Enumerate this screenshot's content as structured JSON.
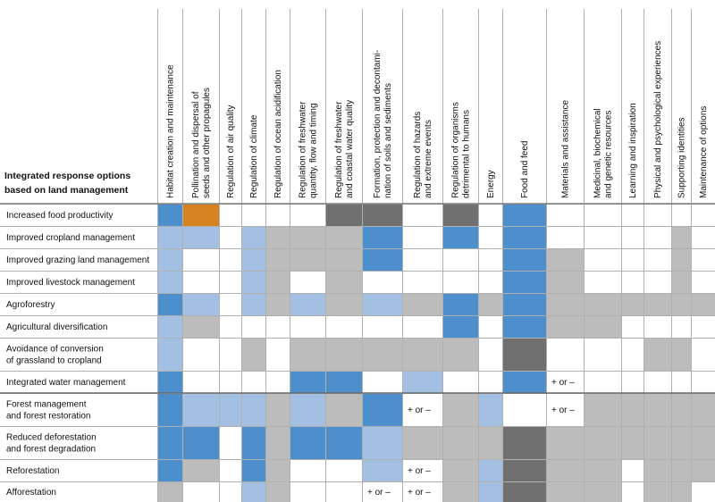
{
  "chart_data": {
    "type": "table",
    "title": "",
    "row_header": [
      "Integrated response options",
      "based on land management"
    ],
    "columns": [
      [
        "Habitat creation and maintenance"
      ],
      [
        "Pollination and dispersal of",
        "seeds and other propagules"
      ],
      [
        "Regulation of air quality"
      ],
      [
        "Regulation of climate"
      ],
      [
        "Regulation of ocean acidification"
      ],
      [
        "Regulation of freshwater",
        "quantity, flow and timing"
      ],
      [
        "Regulation of freshwater",
        "and coastal water quality"
      ],
      [
        "Formation, protection and decontami-",
        "nation of soils and sediments"
      ],
      [
        "Regulation of hazards",
        "and extreme events"
      ],
      [
        "Regulation of organisms",
        "detrimental to humans"
      ],
      [
        "Energy"
      ],
      [
        "Food and feed"
      ],
      [
        "Materials and assistance"
      ],
      [
        "Medicinal, biochemical",
        "and genetic resources"
      ],
      [
        "Learning and inspiration"
      ],
      [
        "Physical and psychological experiences"
      ],
      [
        "Supporting identities"
      ],
      [
        "Maintenance of options"
      ]
    ],
    "rows": [
      [
        "Increased food productivity"
      ],
      [
        "Improved cropland management"
      ],
      [
        "Improved grazing land management"
      ],
      [
        "Improved livestock management"
      ],
      [
        "Agroforestry"
      ],
      [
        "Agricultural diversification"
      ],
      [
        "Avoidance of conversion",
        "of grassland to cropland"
      ],
      [
        "Integrated water management"
      ],
      [
        "Forest management",
        "and forest restoration"
      ],
      [
        "Reduced deforestation",
        "and forest degradation"
      ],
      [
        "Reforestation"
      ],
      [
        "Afforestation"
      ]
    ],
    "legend_codes": {
      "B": "#4d8fcd",
      "L": "#a3c0e2",
      "G": "#bcbcbc",
      "D": "#707070",
      "O": "#d8821f",
      "W": "#ffffff"
    },
    "cells": [
      [
        "B",
        "O",
        "W",
        "W",
        "W",
        "W",
        "D",
        "D",
        "W",
        "D",
        "W",
        "B",
        "W",
        "W",
        "W",
        "W",
        "W",
        "W"
      ],
      [
        "L",
        "L",
        "W",
        "L",
        "G",
        "G",
        "G",
        "B",
        "W",
        "B",
        "W",
        "B",
        "W",
        "W",
        "W",
        "W",
        "G",
        "W"
      ],
      [
        "L",
        "W",
        "W",
        "L",
        "G",
        "G",
        "G",
        "B",
        "W",
        "W",
        "W",
        "B",
        "G",
        "W",
        "W",
        "W",
        "G",
        "W"
      ],
      [
        "L",
        "W",
        "W",
        "L",
        "G",
        "W",
        "G",
        "W",
        "W",
        "W",
        "W",
        "B",
        "G",
        "W",
        "W",
        "W",
        "G",
        "W"
      ],
      [
        "B",
        "L",
        "W",
        "L",
        "G",
        "L",
        "G",
        "L",
        "G",
        "B",
        "G",
        "B",
        "G",
        "G",
        "G",
        "G",
        "G",
        "G"
      ],
      [
        "L",
        "G",
        "W",
        "W",
        "W",
        "W",
        "W",
        "W",
        "W",
        "B",
        "W",
        "B",
        "G",
        "G",
        "W",
        "W",
        "W",
        "W"
      ],
      [
        "L",
        "W",
        "W",
        "G",
        "W",
        "G",
        "G",
        "G",
        "G",
        "G",
        "W",
        "D",
        "W",
        "W",
        "W",
        "G",
        "G",
        "W"
      ],
      [
        "B",
        "W",
        "W",
        "W",
        "W",
        "B",
        "B",
        "W",
        "L",
        "W",
        "W",
        "B",
        "W",
        "W",
        "W",
        "W",
        "W",
        "W"
      ],
      [
        "B",
        "L",
        "L",
        "L",
        "G",
        "L",
        "G",
        "B",
        "W",
        "G",
        "L",
        "W",
        "W",
        "G",
        "G",
        "G",
        "G",
        "G"
      ],
      [
        "B",
        "B",
        "W",
        "B",
        "G",
        "B",
        "B",
        "L",
        "G",
        "G",
        "G",
        "D",
        "G",
        "G",
        "G",
        "G",
        "G",
        "G"
      ],
      [
        "B",
        "G",
        "W",
        "B",
        "G",
        "W",
        "W",
        "L",
        "W",
        "G",
        "L",
        "D",
        "G",
        "G",
        "W",
        "G",
        "G",
        "G"
      ],
      [
        "G",
        "W",
        "W",
        "L",
        "G",
        "W",
        "W",
        "W",
        "W",
        "G",
        "L",
        "D",
        "G",
        "G",
        "W",
        "G",
        "G",
        "W"
      ]
    ],
    "annotations": [
      {
        "row": 7,
        "col": 12,
        "text": "+ or –"
      },
      {
        "row": 8,
        "col": 8,
        "text": "+ or –"
      },
      {
        "row": 8,
        "col": 12,
        "text": "+ or –"
      },
      {
        "row": 10,
        "col": 8,
        "text": "+ or –"
      },
      {
        "row": 11,
        "col": 7,
        "text": "+ or –"
      },
      {
        "row": 11,
        "col": 8,
        "text": "+ or –"
      }
    ],
    "separators_after_rows": [
      7
    ]
  }
}
